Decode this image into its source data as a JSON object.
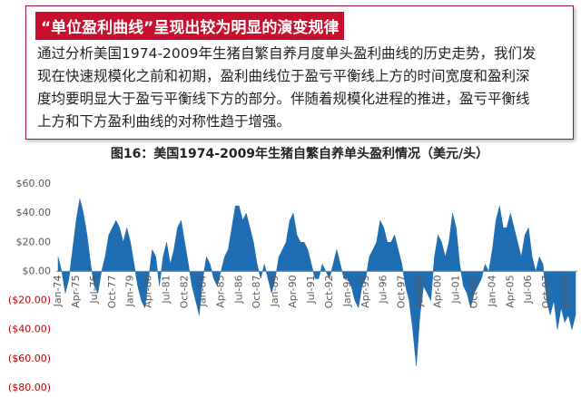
{
  "callout": {
    "title": "“单位盈利曲线”呈现出较为明显的演变规律",
    "lines": [
      "通过分析美国1974-2009年生猪自繁自养月度单头盈利曲线的历史走势，我们发",
      "现在快速规模化之前和初期，盈利曲线位于盈亏平衡线上方的时间宽度和盈利深",
      "度均要明显大于盈亏平衡线下方的部分。伴随着规模化进程的推进，盈亏平衡线",
      "上方和下方盈利曲线的对称性趋于增强。"
    ]
  },
  "chart_data": {
    "type": "area",
    "title": "图16：美国1974-2009年生猪自繁自养单头盈利情况（美元/头）",
    "color": "#1f6eb4",
    "negative_tick_color": "#c00000",
    "grid": false,
    "ylim": [
      -80,
      60
    ],
    "yticks": [
      {
        "value": 60,
        "label": "$60.00"
      },
      {
        "value": 40,
        "label": "$40.00"
      },
      {
        "value": 20,
        "label": "$20.00"
      },
      {
        "value": 0,
        "label": "$0.00"
      },
      {
        "value": -20,
        "label": "($20.00)"
      },
      {
        "value": -40,
        "label": "($40.00)"
      },
      {
        "value": -60,
        "label": "($60.00)"
      },
      {
        "value": -80,
        "label": "($80.00)"
      }
    ],
    "categories": [
      "Jan-74",
      null,
      null,
      null,
      null,
      "Apr-75",
      null,
      null,
      null,
      null,
      "Jul-76",
      null,
      null,
      null,
      null,
      "Oct-77",
      null,
      null,
      null,
      null,
      "Jan-79",
      null,
      null,
      null,
      null,
      "Apr-80",
      null,
      null,
      null,
      null,
      "Jul-81",
      null,
      null,
      null,
      null,
      "Oct-82",
      null,
      null,
      null,
      null,
      "Jan-84",
      null,
      null,
      null,
      null,
      "Apr-85",
      null,
      null,
      null,
      null,
      "Jul-86",
      null,
      null,
      null,
      null,
      "Oct-87",
      null,
      null,
      null,
      null,
      "Jan-89",
      null,
      null,
      null,
      null,
      "Apr-90",
      null,
      null,
      null,
      null,
      "Jul-91",
      null,
      null,
      null,
      null,
      "Oct-92",
      null,
      null,
      null,
      null,
      "Jan-94",
      null,
      null,
      null,
      null,
      "Apr-95",
      null,
      null,
      null,
      null,
      "Jul-96",
      null,
      null,
      null,
      null,
      "Oct-97",
      null,
      null,
      null,
      null,
      "Jan-99",
      null,
      null,
      null,
      null,
      "Apr-00",
      null,
      null,
      null,
      null,
      "Jul-01",
      null,
      null,
      null,
      null,
      "Oct-02",
      null,
      null,
      null,
      null,
      "Jan-04",
      null,
      null,
      null,
      null,
      "Apr-05",
      null,
      null,
      null,
      null,
      "Jul-06",
      null,
      null,
      null,
      null,
      "Oct-07",
      null,
      null,
      null,
      null,
      "Jan-09",
      null,
      null,
      null
    ],
    "values": [
      10,
      0,
      -15,
      -5,
      15,
      35,
      50,
      40,
      25,
      5,
      -10,
      -15,
      0,
      10,
      25,
      30,
      35,
      30,
      20,
      30,
      20,
      5,
      -10,
      -20,
      -25,
      -5,
      15,
      10,
      -10,
      10,
      20,
      5,
      15,
      30,
      35,
      20,
      5,
      -10,
      -20,
      -30,
      -5,
      10,
      5,
      -5,
      -10,
      0,
      10,
      15,
      30,
      45,
      45,
      35,
      40,
      30,
      20,
      5,
      -5,
      5,
      -5,
      -15,
      -5,
      10,
      15,
      20,
      35,
      40,
      25,
      20,
      20,
      15,
      5,
      -5,
      -5,
      5,
      0,
      -5,
      5,
      15,
      5,
      -5,
      -5,
      -10,
      -20,
      -25,
      -10,
      -5,
      10,
      15,
      20,
      35,
      30,
      20,
      20,
      25,
      15,
      5,
      -10,
      -20,
      -40,
      -65,
      -30,
      -10,
      -15,
      -20,
      10,
      25,
      20,
      10,
      20,
      40,
      30,
      5,
      -10,
      -15,
      -25,
      -15,
      -10,
      -5,
      5,
      0,
      15,
      35,
      45,
      30,
      30,
      40,
      30,
      20,
      10,
      25,
      30,
      10,
      0,
      10,
      5,
      -20,
      -30,
      -20,
      -40,
      -25,
      -35,
      -30,
      -40,
      -30
    ]
  }
}
